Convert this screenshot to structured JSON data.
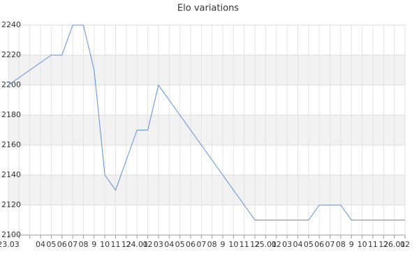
{
  "chart_data": {
    "type": "line",
    "title": "Elo variations",
    "categories": [
      "23.03",
      null,
      null,
      "04",
      "05",
      "06",
      "07",
      "08",
      "9",
      "10",
      "11",
      "12",
      "24.01",
      "02",
      "03",
      "04",
      "05",
      "06",
      "07",
      "08",
      "9",
      "10",
      "11",
      "12",
      "25.01",
      "02",
      "03",
      "04",
      "05",
      "06",
      "07",
      "08",
      "9",
      "10",
      "11",
      "12",
      "26.01",
      "02"
    ],
    "series": [
      {
        "name": "Elo",
        "color": "#5b8fd6",
        "values": [
          2200,
          2205,
          2210,
          2215,
          2220,
          2220,
          2240,
          2240,
          2210,
          2140,
          2130,
          2150,
          2170,
          2170,
          2200,
          2190,
          2180,
          2170,
          2160,
          2150,
          2140,
          2130,
          2120,
          2110,
          2110,
          2110,
          2110,
          2110,
          2110,
          2120,
          2120,
          2120,
          2110,
          2110,
          2110,
          2110,
          2110,
          2110
        ]
      }
    ],
    "ylim": [
      2100,
      2240
    ],
    "yticks": [
      2100,
      2120,
      2140,
      2160,
      2180,
      2200,
      2220,
      2240
    ],
    "grid": true
  }
}
